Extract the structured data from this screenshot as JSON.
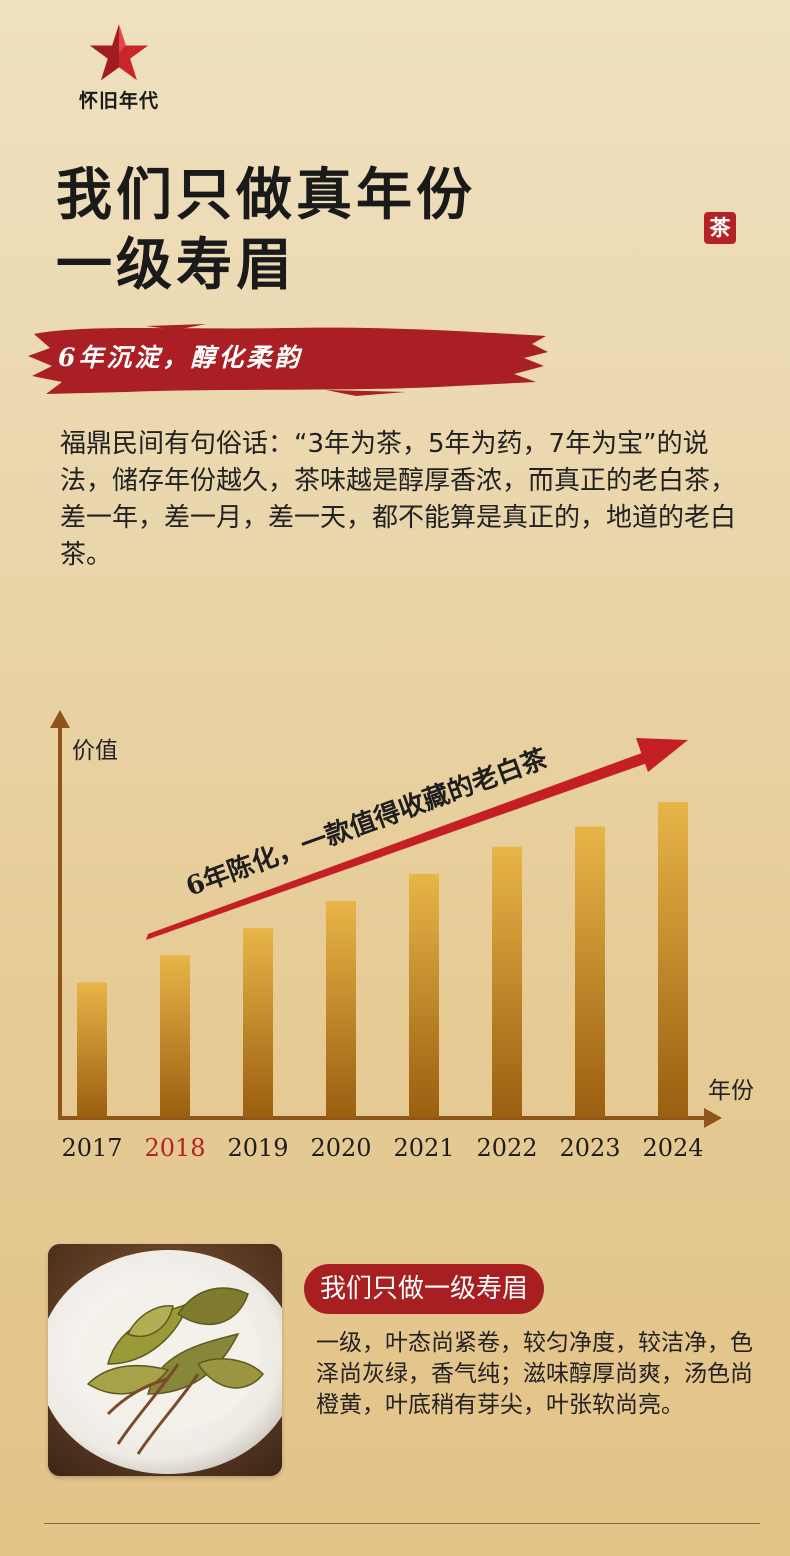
{
  "logo": {
    "text": "怀旧年代",
    "icon": "red-star-icon"
  },
  "title": {
    "line1": "我们只做真年份",
    "line2": "一级寿眉"
  },
  "seal": "茶",
  "slogan": "6年沉淀，醇化柔韵",
  "intro": "福鼎民间有句俗话：“3年为茶，5年为药，7年为宝”的说法，储存年份越久，茶味越是醇厚香浓，而真正的老白茶，差一年，差一月，差一天，都不能算是真正的，地道的老白茶。",
  "chart_data": {
    "type": "bar",
    "categories": [
      "2017",
      "2018",
      "2019",
      "2020",
      "2021",
      "2022",
      "2023",
      "2024"
    ],
    "values": [
      1.0,
      1.2,
      1.4,
      1.6,
      1.8,
      2.0,
      2.15,
      2.33
    ],
    "ylabel": "价值",
    "xlabel": "年份",
    "highlight_category": "2018",
    "annotation": "6年陈化，一款值得收藏的老白茶",
    "colors": {
      "bar_top": "#e8b548",
      "bar_bottom": "#9a5e10",
      "axis": "#8d5519",
      "arrow": "#c41f24",
      "highlight_label": "#b52226"
    }
  },
  "feature": {
    "badge": "我们只做一级寿眉",
    "description": "一级，叶态尚紧卷，较匀净度，较洁净，色泽尚灰绿，香气纯；滋味醇厚尚爽，汤色尚橙黄，叶底稍有芽尖，叶张软尚亮。"
  },
  "colors": {
    "accent": "#a81f22",
    "background": "#ead6ab"
  }
}
